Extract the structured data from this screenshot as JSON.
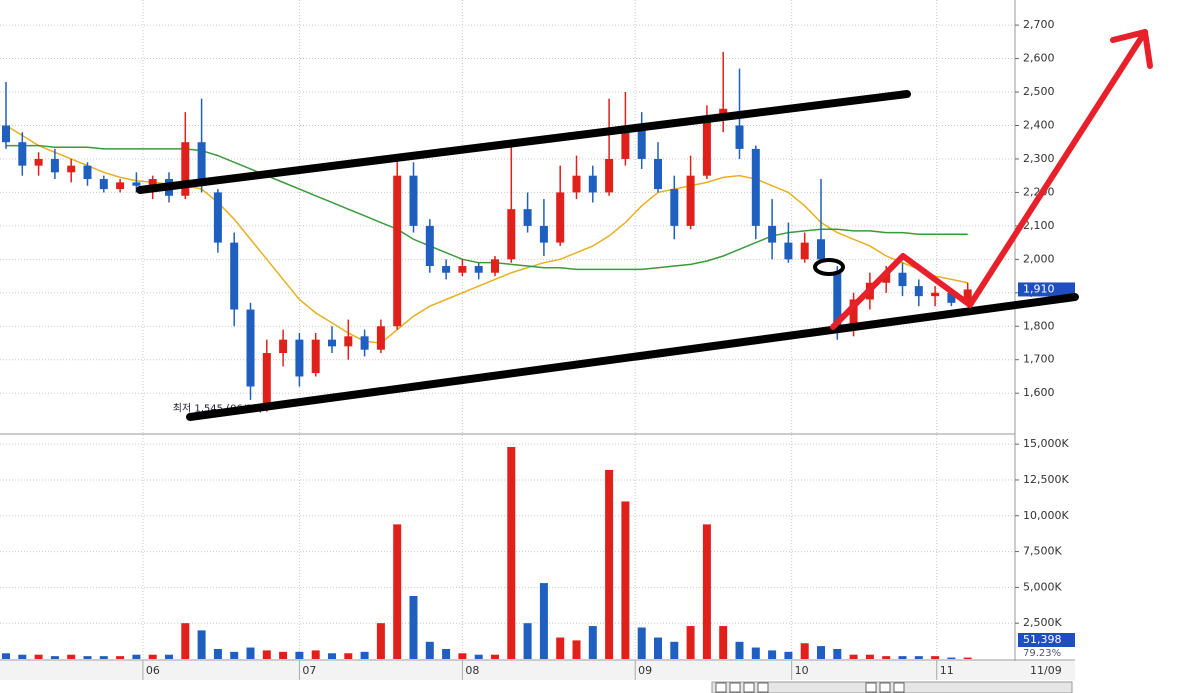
{
  "chart_data": [
    {
      "type": "candlestick",
      "categories": [
        null,
        null,
        null,
        null,
        null,
        null,
        null,
        null,
        null,
        null,
        null,
        null,
        null,
        null,
        null,
        null,
        null,
        null,
        null,
        null,
        null,
        null,
        null,
        null,
        null,
        null,
        null,
        null,
        null,
        null,
        null,
        null,
        null,
        null,
        null,
        null,
        null,
        null,
        null,
        null,
        null,
        null,
        null,
        null,
        null,
        null,
        null,
        null,
        null,
        null,
        null,
        null,
        null,
        null,
        null,
        null,
        null,
        null,
        null,
        null
      ],
      "open": [
        2400,
        2350,
        2280,
        2300,
        2260,
        2280,
        2240,
        2210,
        2230,
        2220,
        2240,
        2190,
        2350,
        2200,
        2050,
        1850,
        1570,
        1720,
        1760,
        1660,
        1760,
        1740,
        1770,
        1730,
        1800,
        2250,
        2100,
        1980,
        1960,
        1980,
        1960,
        2000,
        2150,
        2100,
        2050,
        2200,
        2250,
        2200,
        2300,
        2400,
        2300,
        2210,
        2100,
        2250,
        2420,
        2400,
        2330,
        2100,
        2050,
        2000,
        2060,
        1960,
        1800,
        1880,
        1930,
        1960,
        1920,
        1890,
        1900,
        1870
      ],
      "high": [
        2530,
        2380,
        2320,
        2330,
        2300,
        2290,
        2250,
        2240,
        2260,
        2250,
        2260,
        2440,
        2480,
        2210,
        2080,
        1870,
        1760,
        1790,
        1780,
        1780,
        1800,
        1820,
        1790,
        1820,
        2310,
        2290,
        2120,
        2000,
        2000,
        1990,
        2010,
        2350,
        2200,
        2180,
        2280,
        2310,
        2280,
        2480,
        2500,
        2440,
        2350,
        2250,
        2310,
        2460,
        2620,
        2570,
        2340,
        2180,
        2110,
        2080,
        2240,
        1980,
        1900,
        1960,
        1980,
        1990,
        1940,
        1920,
        1910,
        1930
      ],
      "low": [
        2330,
        2250,
        2250,
        2240,
        2230,
        2220,
        2200,
        2200,
        2200,
        2180,
        2170,
        2180,
        2200,
        2020,
        1800,
        1580,
        1545,
        1680,
        1620,
        1650,
        1720,
        1700,
        1710,
        1720,
        1790,
        2080,
        1960,
        1940,
        1950,
        1940,
        1950,
        1990,
        2080,
        2010,
        2040,
        2180,
        2170,
        2190,
        2280,
        2270,
        2200,
        2060,
        2090,
        2240,
        2380,
        2300,
        2060,
        2000,
        1990,
        1990,
        1990,
        1760,
        1770,
        1850,
        1900,
        1890,
        1860,
        1860,
        1860,
        1860
      ],
      "close": [
        2350,
        2280,
        2300,
        2260,
        2280,
        2240,
        2210,
        2230,
        2220,
        2240,
        2190,
        2350,
        2220,
        2050,
        1850,
        1620,
        1720,
        1760,
        1650,
        1760,
        1740,
        1770,
        1730,
        1800,
        2250,
        2100,
        1980,
        1960,
        1980,
        1960,
        2000,
        2150,
        2100,
        2050,
        2200,
        2250,
        2200,
        2300,
        2400,
        2300,
        2210,
        2100,
        2250,
        2420,
        2450,
        2330,
        2100,
        2050,
        2000,
        2050,
        2000,
        1800,
        1880,
        1930,
        1960,
        1920,
        1890,
        1900,
        1870,
        1910
      ],
      "up_color": "#e0201a",
      "down_color": "#1f5fbf",
      "lines": [
        {
          "color": "#e8b020",
          "values": [
            2400,
            2370,
            2340,
            2320,
            2300,
            2280,
            2260,
            2245,
            2235,
            2230,
            2225,
            2220,
            2210,
            2170,
            2120,
            2060,
            2000,
            1940,
            1880,
            1840,
            1810,
            1780,
            1755,
            1750,
            1790,
            1830,
            1860,
            1880,
            1900,
            1920,
            1940,
            1960,
            1975,
            1990,
            2000,
            2020,
            2040,
            2070,
            2110,
            2160,
            2200,
            2210,
            2220,
            2230,
            2245,
            2250,
            2240,
            2220,
            2200,
            2160,
            2110,
            2080,
            2060,
            2040,
            2010,
            1990,
            1970,
            1950,
            1940,
            1930
          ]
        },
        {
          "color": "#3a9a3a",
          "values": [
            2340,
            2340,
            2340,
            2335,
            2335,
            2335,
            2330,
            2330,
            2330,
            2330,
            2330,
            2330,
            2325,
            2310,
            2290,
            2270,
            2250,
            2230,
            2210,
            2190,
            2170,
            2150,
            2130,
            2110,
            2090,
            2060,
            2040,
            2020,
            2000,
            1990,
            1990,
            1985,
            1980,
            1975,
            1975,
            1970,
            1970,
            1970,
            1970,
            1970,
            1975,
            1980,
            1985,
            1995,
            2010,
            2030,
            2050,
            2070,
            2080,
            2085,
            2090,
            2090,
            2085,
            2085,
            2080,
            2080,
            2075,
            2075,
            2075,
            2075
          ]
        }
      ],
      "ylim": [
        1490,
        2775
      ],
      "yticks": [
        {
          "value": 1600,
          "label": "1,600"
        },
        {
          "value": 1700,
          "label": "1,700"
        },
        {
          "value": 1800,
          "label": "1,800"
        },
        {
          "value": 1900,
          "label": "1,900"
        },
        {
          "value": 2000,
          "label": "2,000"
        },
        {
          "value": 2100,
          "label": "2,100"
        },
        {
          "value": 2200,
          "label": "2,200"
        },
        {
          "value": 2300,
          "label": "2,300"
        },
        {
          "value": 2400,
          "label": "2,400"
        },
        {
          "value": 2500,
          "label": "2,500"
        },
        {
          "value": 2600,
          "label": "2,600"
        },
        {
          "value": 2700,
          "label": "2,700"
        }
      ],
      "xticks": [
        {
          "value": 8.4,
          "label": "06"
        },
        {
          "value": 18,
          "label": "07"
        },
        {
          "value": 28,
          "label": "08"
        },
        {
          "value": 38.6,
          "label": "09"
        },
        {
          "value": 48.2,
          "label": "10"
        },
        {
          "value": 57.1,
          "label": "11"
        }
      ],
      "grid": true,
      "last_price": {
        "value": 1910,
        "label": "1,910"
      },
      "annotation": "최저 1,545 (06/21)",
      "date_label": "11/09"
    },
    {
      "type": "bar",
      "values": [
        400,
        300,
        300,
        200,
        300,
        200,
        200,
        200,
        300,
        300,
        300,
        2500,
        2000,
        700,
        500,
        800,
        600,
        500,
        500,
        600,
        400,
        400,
        500,
        2500,
        9400,
        4400,
        1200,
        700,
        400,
        300,
        300,
        14800,
        2500,
        5300,
        1500,
        1300,
        2300,
        13200,
        11000,
        2200,
        1500,
        1200,
        2300,
        9400,
        2300,
        1200,
        800,
        600,
        500,
        1100,
        900,
        700,
        300,
        300,
        200,
        200,
        200,
        200,
        100,
        100
      ],
      "ylim": [
        0,
        15500
      ],
      "yticks": [
        {
          "value": 2500,
          "label": "2,500K"
        },
        {
          "value": 5000,
          "label": "5,000K"
        },
        {
          "value": 7500,
          "label": "7,500K"
        },
        {
          "value": 10000,
          "label": "10,000K"
        },
        {
          "value": 12500,
          "label": "12,500K"
        },
        {
          "value": 15000,
          "label": "15,000K"
        }
      ],
      "grid": true,
      "readouts": [
        {
          "value": 51398,
          "label": "51,398"
        },
        {
          "value": 79.23,
          "label": "79.23%"
        }
      ]
    }
  ]
}
